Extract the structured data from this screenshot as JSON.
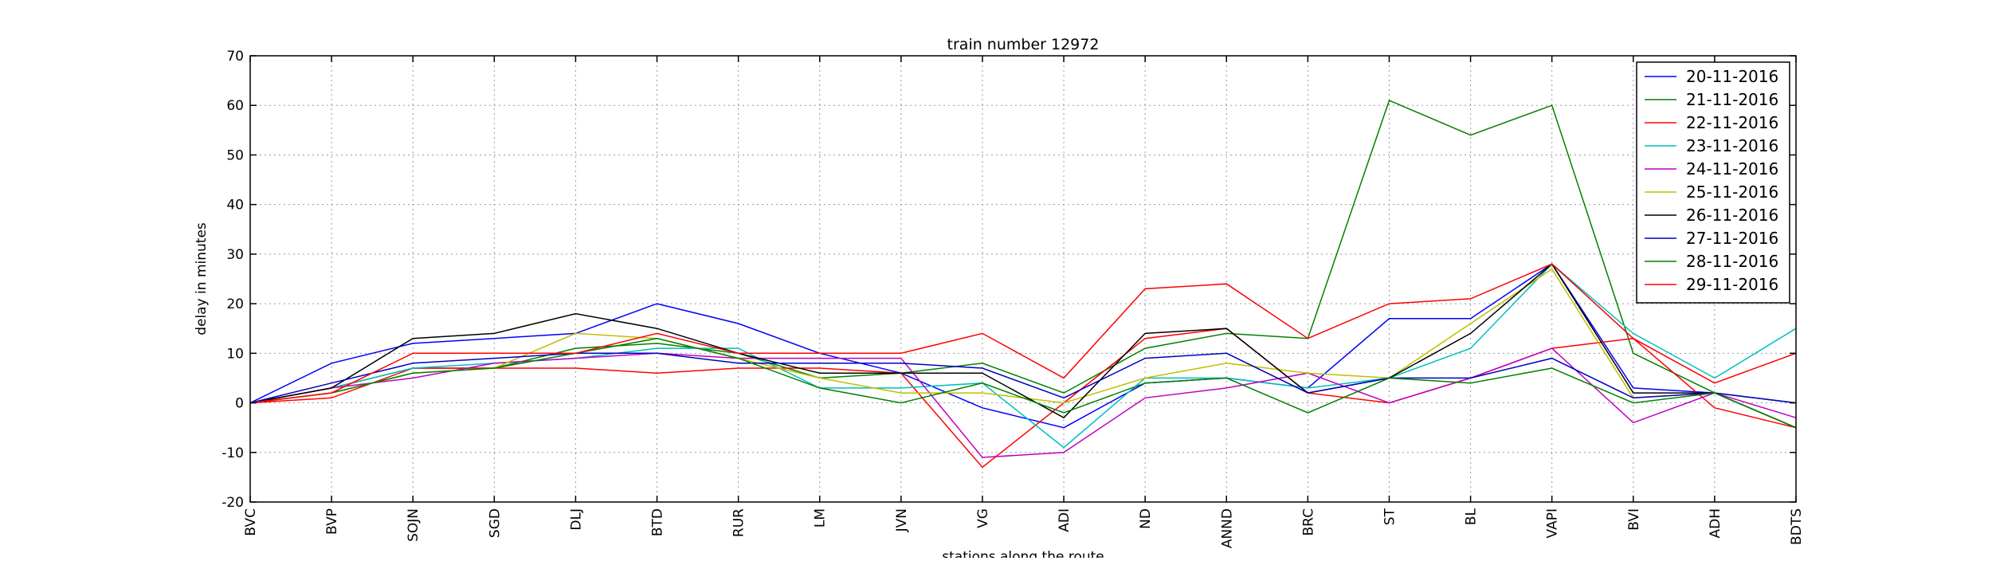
{
  "chart_data": {
    "type": "line",
    "title": "train number 12972",
    "xlabel": "stations along the route",
    "ylabel": "delay in minutes",
    "categories": [
      "BVC",
      "BVP",
      "SOJN",
      "SGD",
      "DLJ",
      "BTD",
      "RUR",
      "LM",
      "JVN",
      "VG",
      "ADI",
      "ND",
      "ANND",
      "BRC",
      "ST",
      "BL",
      "VAPI",
      "BVI",
      "ADH",
      "BDTS"
    ],
    "ylim": [
      -20,
      70
    ],
    "yticks": [
      -20,
      -10,
      0,
      10,
      20,
      30,
      40,
      50,
      60,
      70
    ],
    "grid": true,
    "legend_position": "top-right",
    "series": [
      {
        "name": "20-11-2016",
        "color": "#0000ff",
        "values": [
          0,
          8,
          12,
          13,
          14,
          20,
          16,
          10,
          6,
          -1,
          -5,
          4,
          5,
          3,
          17,
          17,
          28,
          3,
          2,
          0
        ]
      },
      {
        "name": "21-11-2016",
        "color": "#008000",
        "values": [
          0,
          3,
          7,
          7,
          11,
          12,
          10,
          5,
          6,
          8,
          2,
          11,
          14,
          13,
          61,
          54,
          60,
          10,
          2,
          -5
        ]
      },
      {
        "name": "22-11-2016",
        "color": "#ff0000",
        "values": [
          0,
          1,
          7,
          7,
          7,
          6,
          7,
          7,
          6,
          -13,
          0,
          13,
          15,
          2,
          0,
          5,
          11,
          13,
          -1,
          -5
        ]
      },
      {
        "name": "23-11-2016",
        "color": "#00bfbf",
        "values": [
          0,
          3,
          7,
          8,
          9,
          11,
          11,
          3,
          3,
          4,
          -9,
          5,
          5,
          3,
          5,
          11,
          28,
          14,
          5,
          15
        ]
      },
      {
        "name": "24-11-2016",
        "color": "#bf00bf",
        "values": [
          0,
          3,
          5,
          8,
          9,
          10,
          9,
          9,
          9,
          -11,
          -10,
          1,
          3,
          6,
          0,
          5,
          11,
          -4,
          2,
          -3
        ]
      },
      {
        "name": "25-11-2016",
        "color": "#bfbf00",
        "values": [
          0,
          2,
          6,
          7,
          14,
          13,
          9,
          5,
          2,
          2,
          0,
          5,
          8,
          6,
          5,
          16,
          27,
          1,
          2,
          0
        ]
      },
      {
        "name": "26-11-2016",
        "color": "#000000",
        "values": [
          0,
          3,
          13,
          14,
          18,
          15,
          10,
          6,
          6,
          6,
          -3,
          14,
          15,
          2,
          5,
          14,
          28,
          2,
          2,
          -5
        ]
      },
      {
        "name": "27-11-2016",
        "color": "#0000bf",
        "values": [
          0,
          4,
          8,
          9,
          10,
          10,
          8,
          8,
          8,
          7,
          1,
          9,
          10,
          2,
          5,
          5,
          9,
          1,
          2,
          0
        ]
      },
      {
        "name": "28-11-2016",
        "color": "#008000",
        "values": [
          0,
          2,
          6,
          7,
          10,
          13,
          9,
          3,
          0,
          4,
          -2,
          4,
          5,
          -2,
          5,
          4,
          7,
          0,
          2,
          -5
        ]
      },
      {
        "name": "29-11-2016",
        "color": "#ff0000",
        "values": [
          0,
          2,
          10,
          10,
          10,
          14,
          10,
          10,
          10,
          14,
          5,
          23,
          24,
          13,
          20,
          21,
          28,
          13,
          4,
          10
        ]
      }
    ]
  }
}
